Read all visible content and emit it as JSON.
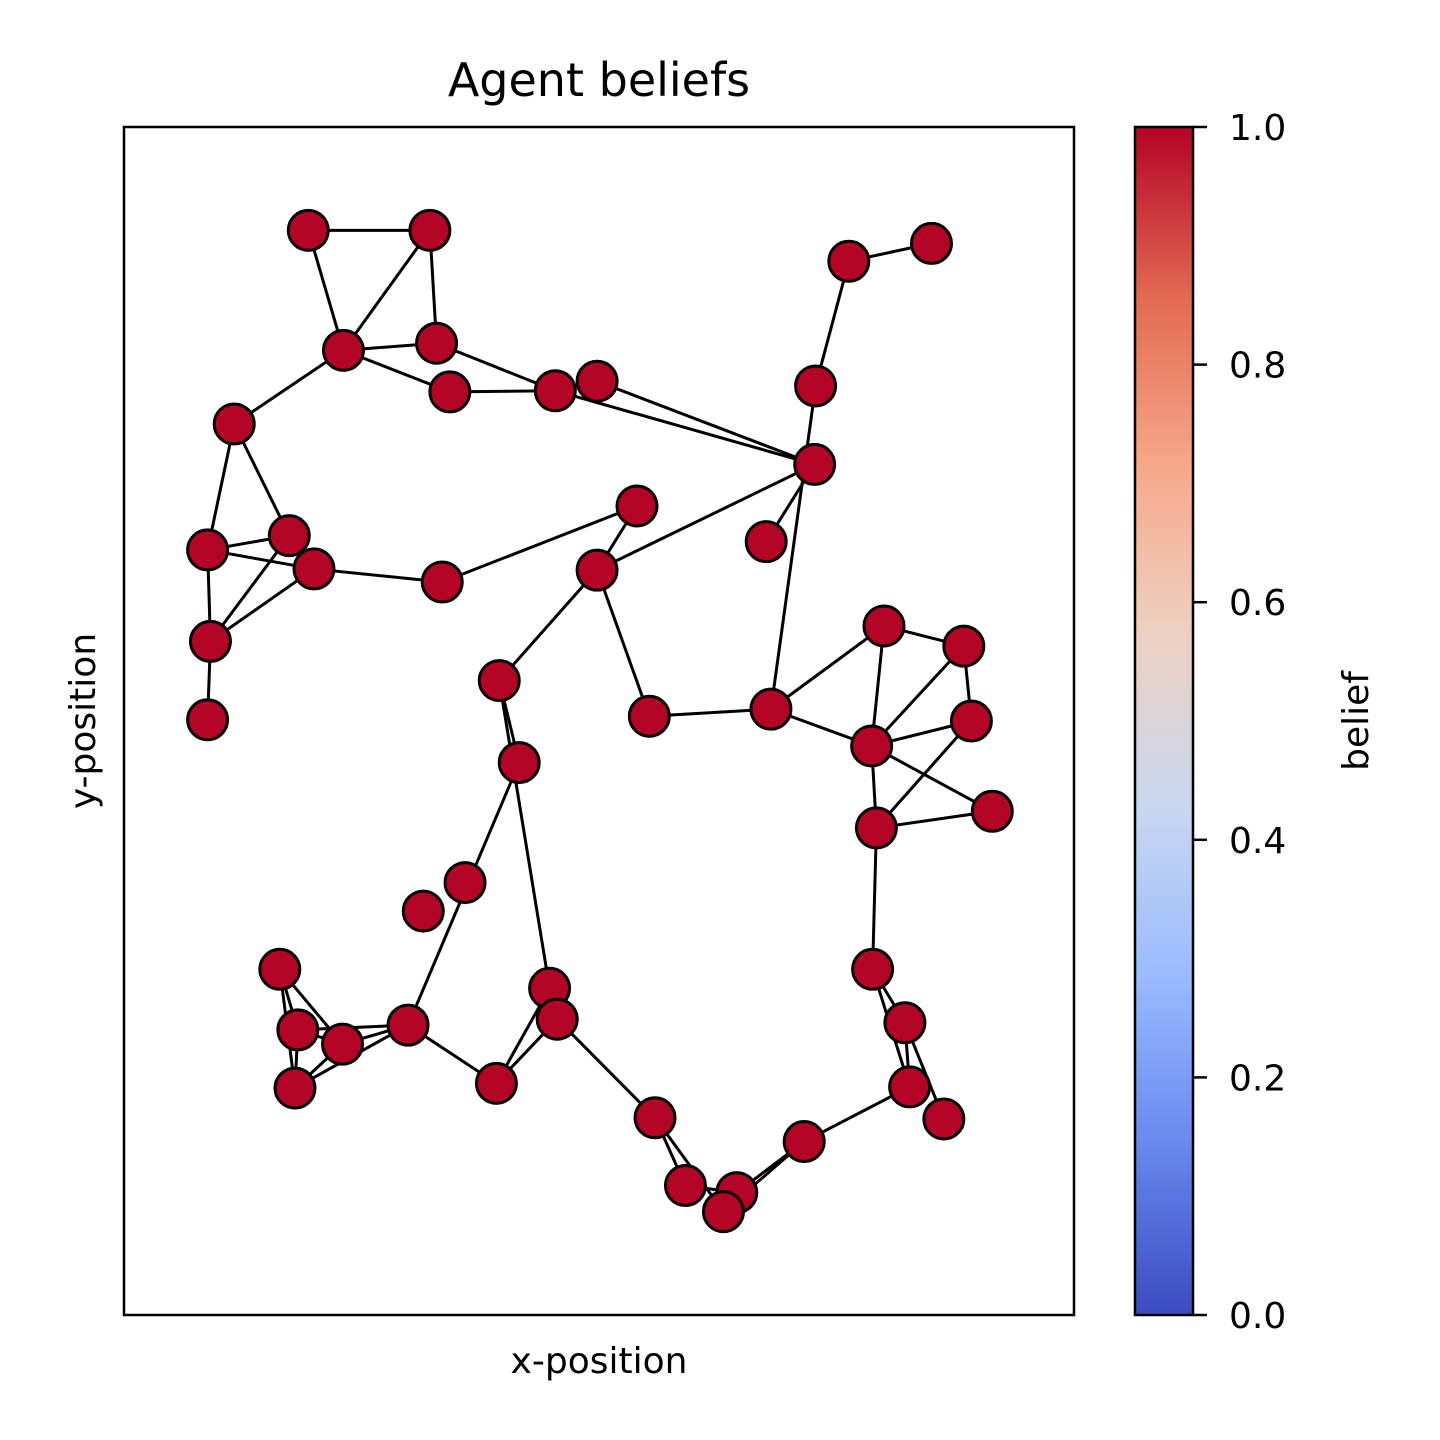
{
  "chart_data": {
    "type": "network",
    "title": "Agent beliefs",
    "xlabel": "x-position",
    "ylabel": "y-position",
    "xlim": [
      0,
      1
    ],
    "ylim": [
      0,
      1
    ],
    "colorbar": {
      "label": "belief",
      "colormap": "coolwarm",
      "range": [
        0,
        1
      ],
      "ticks": [
        "0.0",
        "0.2",
        "0.4",
        "0.6",
        "0.8",
        "1.0"
      ],
      "stops": [
        "#3b4cc0",
        "#6788ee",
        "#9abbff",
        "#c9d7f0",
        "#edd1c2",
        "#f7a889",
        "#e26952",
        "#b40426"
      ]
    },
    "node_style": {
      "fill": "#b40426",
      "stroke": "#000000"
    },
    "nodes": [
      {
        "id": 0,
        "x": 0.194,
        "y": 0.913,
        "belief": 1.0
      },
      {
        "id": 1,
        "x": 0.322,
        "y": 0.913,
        "belief": 1.0
      },
      {
        "id": 2,
        "x": 0.231,
        "y": 0.812,
        "belief": 1.0
      },
      {
        "id": 3,
        "x": 0.329,
        "y": 0.818,
        "belief": 1.0
      },
      {
        "id": 4,
        "x": 0.343,
        "y": 0.777,
        "belief": 1.0
      },
      {
        "id": 5,
        "x": 0.454,
        "y": 0.778,
        "belief": 1.0
      },
      {
        "id": 6,
        "x": 0.498,
        "y": 0.786,
        "belief": 1.0
      },
      {
        "id": 7,
        "x": 0.116,
        "y": 0.75,
        "belief": 1.0
      },
      {
        "id": 8,
        "x": 0.088,
        "y": 0.644,
        "belief": 1.0
      },
      {
        "id": 9,
        "x": 0.174,
        "y": 0.656,
        "belief": 1.0
      },
      {
        "id": 10,
        "x": 0.2,
        "y": 0.628,
        "belief": 1.0
      },
      {
        "id": 11,
        "x": 0.335,
        "y": 0.617,
        "belief": 1.0
      },
      {
        "id": 12,
        "x": 0.091,
        "y": 0.567,
        "belief": 1.0
      },
      {
        "id": 13,
        "x": 0.088,
        "y": 0.501,
        "belief": 1.0
      },
      {
        "id": 14,
        "x": 0.54,
        "y": 0.681,
        "belief": 1.0
      },
      {
        "id": 15,
        "x": 0.498,
        "y": 0.627,
        "belief": 1.0
      },
      {
        "id": 16,
        "x": 0.676,
        "y": 0.651,
        "belief": 1.0
      },
      {
        "id": 17,
        "x": 0.727,
        "y": 0.716,
        "belief": 1.0
      },
      {
        "id": 18,
        "x": 0.728,
        "y": 0.782,
        "belief": 1.0
      },
      {
        "id": 19,
        "x": 0.763,
        "y": 0.887,
        "belief": 1.0
      },
      {
        "id": 20,
        "x": 0.85,
        "y": 0.902,
        "belief": 1.0
      },
      {
        "id": 21,
        "x": 0.395,
        "y": 0.534,
        "belief": 1.0
      },
      {
        "id": 22,
        "x": 0.416,
        "y": 0.465,
        "belief": 1.0
      },
      {
        "id": 23,
        "x": 0.553,
        "y": 0.504,
        "belief": 1.0
      },
      {
        "id": 24,
        "x": 0.681,
        "y": 0.51,
        "belief": 1.0
      },
      {
        "id": 25,
        "x": 0.8,
        "y": 0.58,
        "belief": 1.0
      },
      {
        "id": 26,
        "x": 0.884,
        "y": 0.563,
        "belief": 1.0
      },
      {
        "id": 27,
        "x": 0.892,
        "y": 0.5,
        "belief": 1.0
      },
      {
        "id": 28,
        "x": 0.787,
        "y": 0.479,
        "belief": 1.0
      },
      {
        "id": 29,
        "x": 0.914,
        "y": 0.424,
        "belief": 1.0
      },
      {
        "id": 30,
        "x": 0.792,
        "y": 0.41,
        "belief": 1.0
      },
      {
        "id": 31,
        "x": 0.359,
        "y": 0.364,
        "belief": 1.0
      },
      {
        "id": 32,
        "x": 0.315,
        "y": 0.34,
        "belief": 1.0
      },
      {
        "id": 33,
        "x": 0.788,
        "y": 0.291,
        "belief": 1.0
      },
      {
        "id": 34,
        "x": 0.822,
        "y": 0.246,
        "belief": 1.0
      },
      {
        "id": 35,
        "x": 0.164,
        "y": 0.291,
        "belief": 1.0
      },
      {
        "id": 36,
        "x": 0.448,
        "y": 0.275,
        "belief": 1.0
      },
      {
        "id": 37,
        "x": 0.456,
        "y": 0.249,
        "belief": 1.0
      },
      {
        "id": 38,
        "x": 0.183,
        "y": 0.24,
        "belief": 1.0
      },
      {
        "id": 39,
        "x": 0.23,
        "y": 0.228,
        "belief": 1.0
      },
      {
        "id": 40,
        "x": 0.299,
        "y": 0.244,
        "belief": 1.0
      },
      {
        "id": 41,
        "x": 0.18,
        "y": 0.191,
        "belief": 1.0
      },
      {
        "id": 42,
        "x": 0.392,
        "y": 0.195,
        "belief": 1.0
      },
      {
        "id": 43,
        "x": 0.827,
        "y": 0.192,
        "belief": 1.0
      },
      {
        "id": 44,
        "x": 0.863,
        "y": 0.165,
        "belief": 1.0
      },
      {
        "id": 45,
        "x": 0.559,
        "y": 0.166,
        "belief": 1.0
      },
      {
        "id": 46,
        "x": 0.716,
        "y": 0.146,
        "belief": 1.0
      },
      {
        "id": 47,
        "x": 0.591,
        "y": 0.109,
        "belief": 1.0
      },
      {
        "id": 48,
        "x": 0.645,
        "y": 0.103,
        "belief": 1.0
      },
      {
        "id": 49,
        "x": 0.631,
        "y": 0.087,
        "belief": 1.0
      }
    ],
    "edges": [
      [
        0,
        1
      ],
      [
        0,
        2
      ],
      [
        1,
        2
      ],
      [
        1,
        3
      ],
      [
        2,
        3
      ],
      [
        2,
        4
      ],
      [
        3,
        5
      ],
      [
        4,
        5
      ],
      [
        2,
        7
      ],
      [
        7,
        8
      ],
      [
        7,
        9
      ],
      [
        8,
        9
      ],
      [
        8,
        10
      ],
      [
        8,
        12
      ],
      [
        9,
        12
      ],
      [
        10,
        12
      ],
      [
        10,
        11
      ],
      [
        12,
        13
      ],
      [
        11,
        14
      ],
      [
        14,
        15
      ],
      [
        5,
        17
      ],
      [
        6,
        17
      ],
      [
        17,
        16
      ],
      [
        17,
        15
      ],
      [
        18,
        19
      ],
      [
        19,
        20
      ],
      [
        18,
        24
      ],
      [
        15,
        23
      ],
      [
        23,
        24
      ],
      [
        24,
        25
      ],
      [
        24,
        28
      ],
      [
        25,
        26
      ],
      [
        25,
        28
      ],
      [
        26,
        27
      ],
      [
        26,
        28
      ],
      [
        27,
        28
      ],
      [
        28,
        29
      ],
      [
        28,
        30
      ],
      [
        27,
        30
      ],
      [
        30,
        29
      ],
      [
        30,
        33
      ],
      [
        33,
        34
      ],
      [
        33,
        43
      ],
      [
        34,
        43
      ],
      [
        34,
        44
      ],
      [
        15,
        21
      ],
      [
        21,
        36
      ],
      [
        21,
        22
      ],
      [
        22,
        40
      ],
      [
        35,
        38
      ],
      [
        35,
        39
      ],
      [
        35,
        41
      ],
      [
        38,
        39
      ],
      [
        38,
        41
      ],
      [
        38,
        40
      ],
      [
        39,
        40
      ],
      [
        41,
        40
      ],
      [
        41,
        39
      ],
      [
        40,
        42
      ],
      [
        42,
        36
      ],
      [
        42,
        37
      ],
      [
        36,
        37
      ],
      [
        37,
        45
      ],
      [
        45,
        47
      ],
      [
        45,
        49
      ],
      [
        47,
        48
      ],
      [
        48,
        46
      ],
      [
        49,
        46
      ],
      [
        46,
        43
      ]
    ]
  }
}
